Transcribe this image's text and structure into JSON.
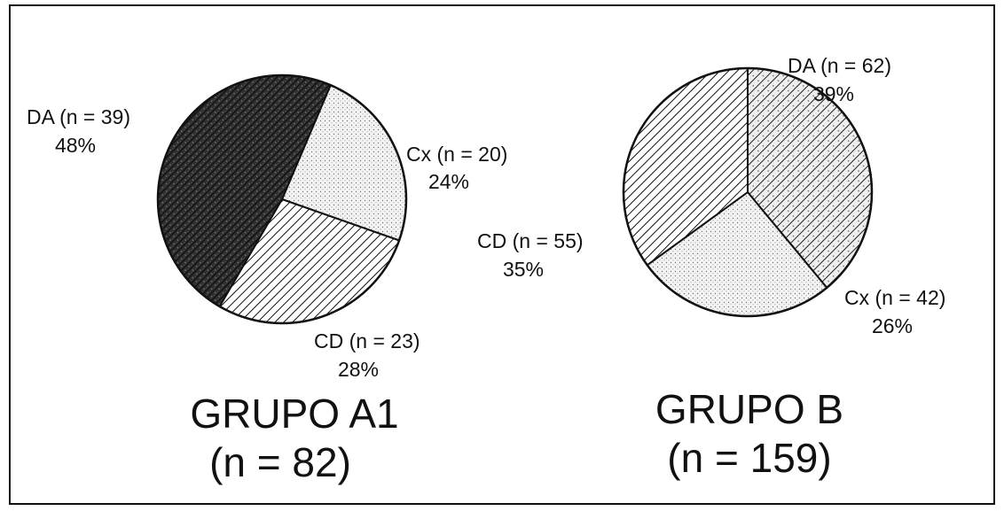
{
  "chart_data": [
    {
      "type": "pie",
      "title": "GRUPO A1",
      "subtitle": "(n = 82)",
      "slices": [
        {
          "name": "DA",
          "n_label": "(n = 39)",
          "count": 39,
          "percent_label": "48%",
          "value": 48,
          "fill": "dense-dark"
        },
        {
          "name": "Cx",
          "n_label": "(n = 20)",
          "count": 20,
          "percent_label": "24%",
          "value": 24,
          "fill": "dots"
        },
        {
          "name": "CD",
          "n_label": "(n = 23)",
          "count": 23,
          "percent_label": "28%",
          "value": 28,
          "fill": "hatch"
        }
      ]
    },
    {
      "type": "pie",
      "title": "GRUPO B",
      "subtitle": "(n = 159)",
      "slices": [
        {
          "name": "DA",
          "n_label": "(n = 62)",
          "count": 62,
          "percent_label": "39%",
          "value": 39,
          "fill": "hatch-speckle"
        },
        {
          "name": "Cx",
          "n_label": "(n = 42)",
          "count": 42,
          "percent_label": "26%",
          "value": 26,
          "fill": "dots"
        },
        {
          "name": "CD",
          "n_label": "(n = 55)",
          "count": 55,
          "percent_label": "35%",
          "value": 35,
          "fill": "hatch"
        }
      ]
    }
  ],
  "colors": {
    "ink": "#111111",
    "dark_fill": "#3a3a3a",
    "dot_fill": "#f2f2f2",
    "background": "#ffffff"
  }
}
